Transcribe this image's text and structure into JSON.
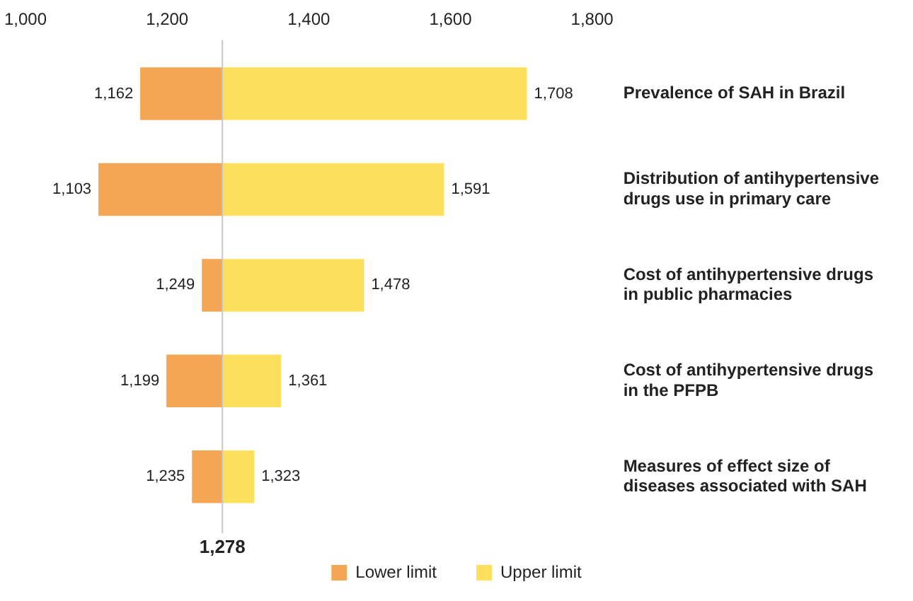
{
  "chart_data": {
    "type": "bar",
    "orientation": "horizontal",
    "categories": [
      "Prevalence of SAH in Brazil",
      "Distribution of antihypertensive drugs use in primary care",
      "Cost of antihypertensive drugs in public pharmacies",
      "Cost of antihypertensive drugs in the PFPB",
      "Measures of effect size of diseases associated with SAH"
    ],
    "series": [
      {
        "name": "Lower limit",
        "color": "#f5a654",
        "base": [
          1278,
          1278,
          1278,
          1278,
          1278
        ],
        "values": [
          -116,
          -175,
          -29,
          -79,
          -43
        ],
        "value_labels": [
          "1,162",
          "1,103",
          "1,249",
          "1,199",
          "1,235"
        ]
      },
      {
        "name": "Upper limit",
        "color": "#fde05e",
        "base": [
          1278,
          1278,
          1278,
          1278,
          1278
        ],
        "values": [
          430,
          313,
          200,
          83,
          45
        ],
        "value_labels": [
          "1,708",
          "1,591",
          "1,478",
          "1,361",
          "1,323"
        ]
      }
    ],
    "xlim": [
      1000,
      1800
    ],
    "xticks": [
      {
        "value": 1000,
        "label": "1,000"
      },
      {
        "value": 1200,
        "label": "1,200"
      },
      {
        "value": 1400,
        "label": "1,400"
      },
      {
        "value": 1600,
        "label": "1,600"
      },
      {
        "value": 1800,
        "label": "1,800"
      }
    ],
    "ref_lines": [
      {
        "axis": "x",
        "value": 1278,
        "label": "1,278",
        "color": "#c8c8c8"
      }
    ],
    "grid": false,
    "legend": "bottom"
  }
}
